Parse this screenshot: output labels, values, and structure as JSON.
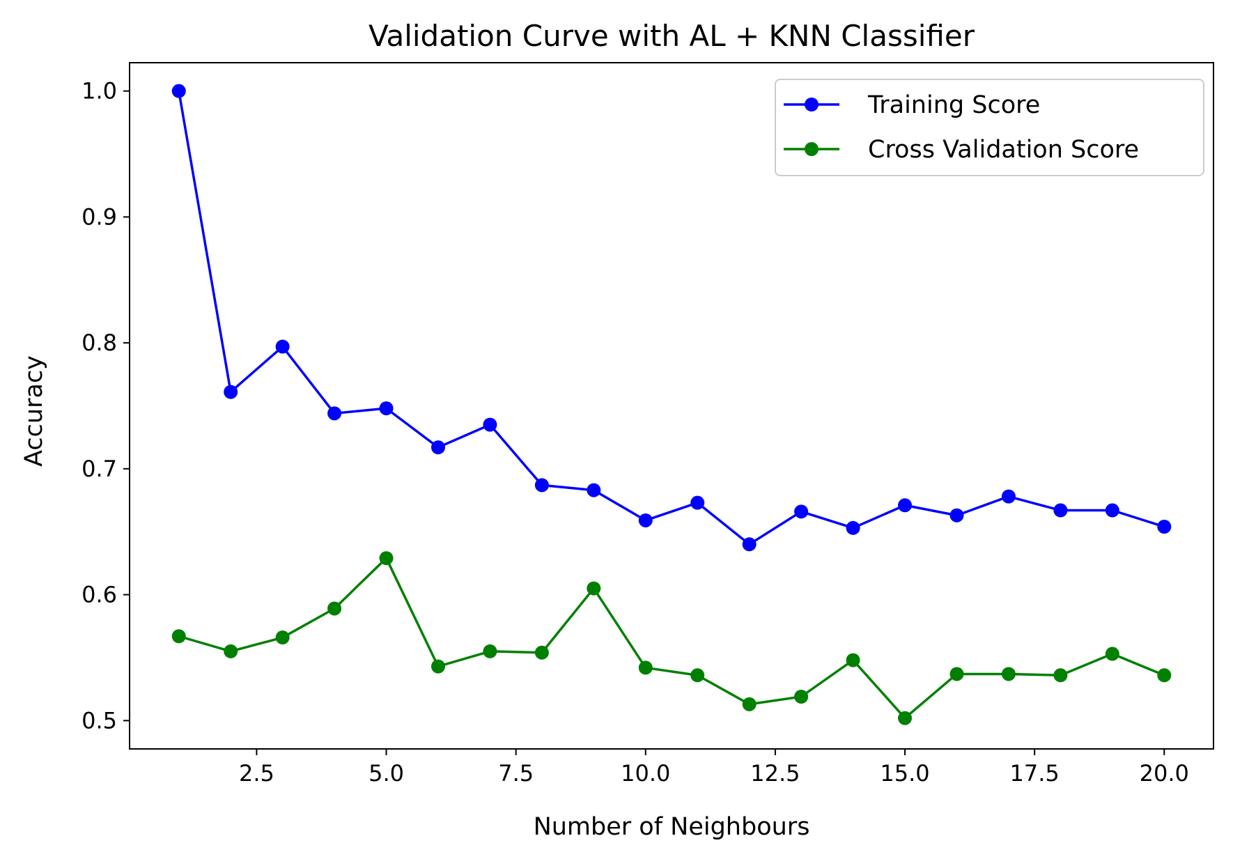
{
  "chart_data": {
    "type": "line",
    "title": "Validation Curve with AL + KNN Classifier",
    "xlabel": "Number of Neighbours",
    "ylabel": "Accuracy",
    "xlim": [
      0.05,
      20.95
    ],
    "ylim": [
      0.4775,
      1.0225
    ],
    "xticks": [
      2.5,
      5.0,
      7.5,
      10.0,
      12.5,
      15.0,
      17.5,
      20.0
    ],
    "xtick_labels": [
      "2.5",
      "5.0",
      "7.5",
      "10.0",
      "12.5",
      "15.0",
      "17.5",
      "20.0"
    ],
    "yticks": [
      0.5,
      0.6,
      0.7,
      0.8,
      0.9,
      1.0
    ],
    "ytick_labels": [
      "0.5",
      "0.6",
      "0.7",
      "0.8",
      "0.9",
      "1.0"
    ],
    "grid": false,
    "legend_position": "top-right",
    "x": [
      1,
      2,
      3,
      4,
      5,
      6,
      7,
      8,
      9,
      10,
      11,
      12,
      13,
      14,
      15,
      16,
      17,
      18,
      19,
      20
    ],
    "series": [
      {
        "name": "Training Score",
        "color": "#0000ff",
        "marker": "circle",
        "values": [
          1.0,
          0.761,
          0.797,
          0.744,
          0.748,
          0.717,
          0.735,
          0.687,
          0.683,
          0.659,
          0.673,
          0.64,
          0.666,
          0.653,
          0.671,
          0.663,
          0.678,
          0.667,
          0.667,
          0.654
        ]
      },
      {
        "name": "Cross Validation Score",
        "color": "#008000",
        "marker": "circle",
        "values": [
          0.567,
          0.555,
          0.566,
          0.589,
          0.629,
          0.543,
          0.555,
          0.554,
          0.605,
          0.542,
          0.536,
          0.513,
          0.519,
          0.548,
          0.502,
          0.537,
          0.537,
          0.536,
          0.553,
          0.536
        ]
      }
    ]
  }
}
